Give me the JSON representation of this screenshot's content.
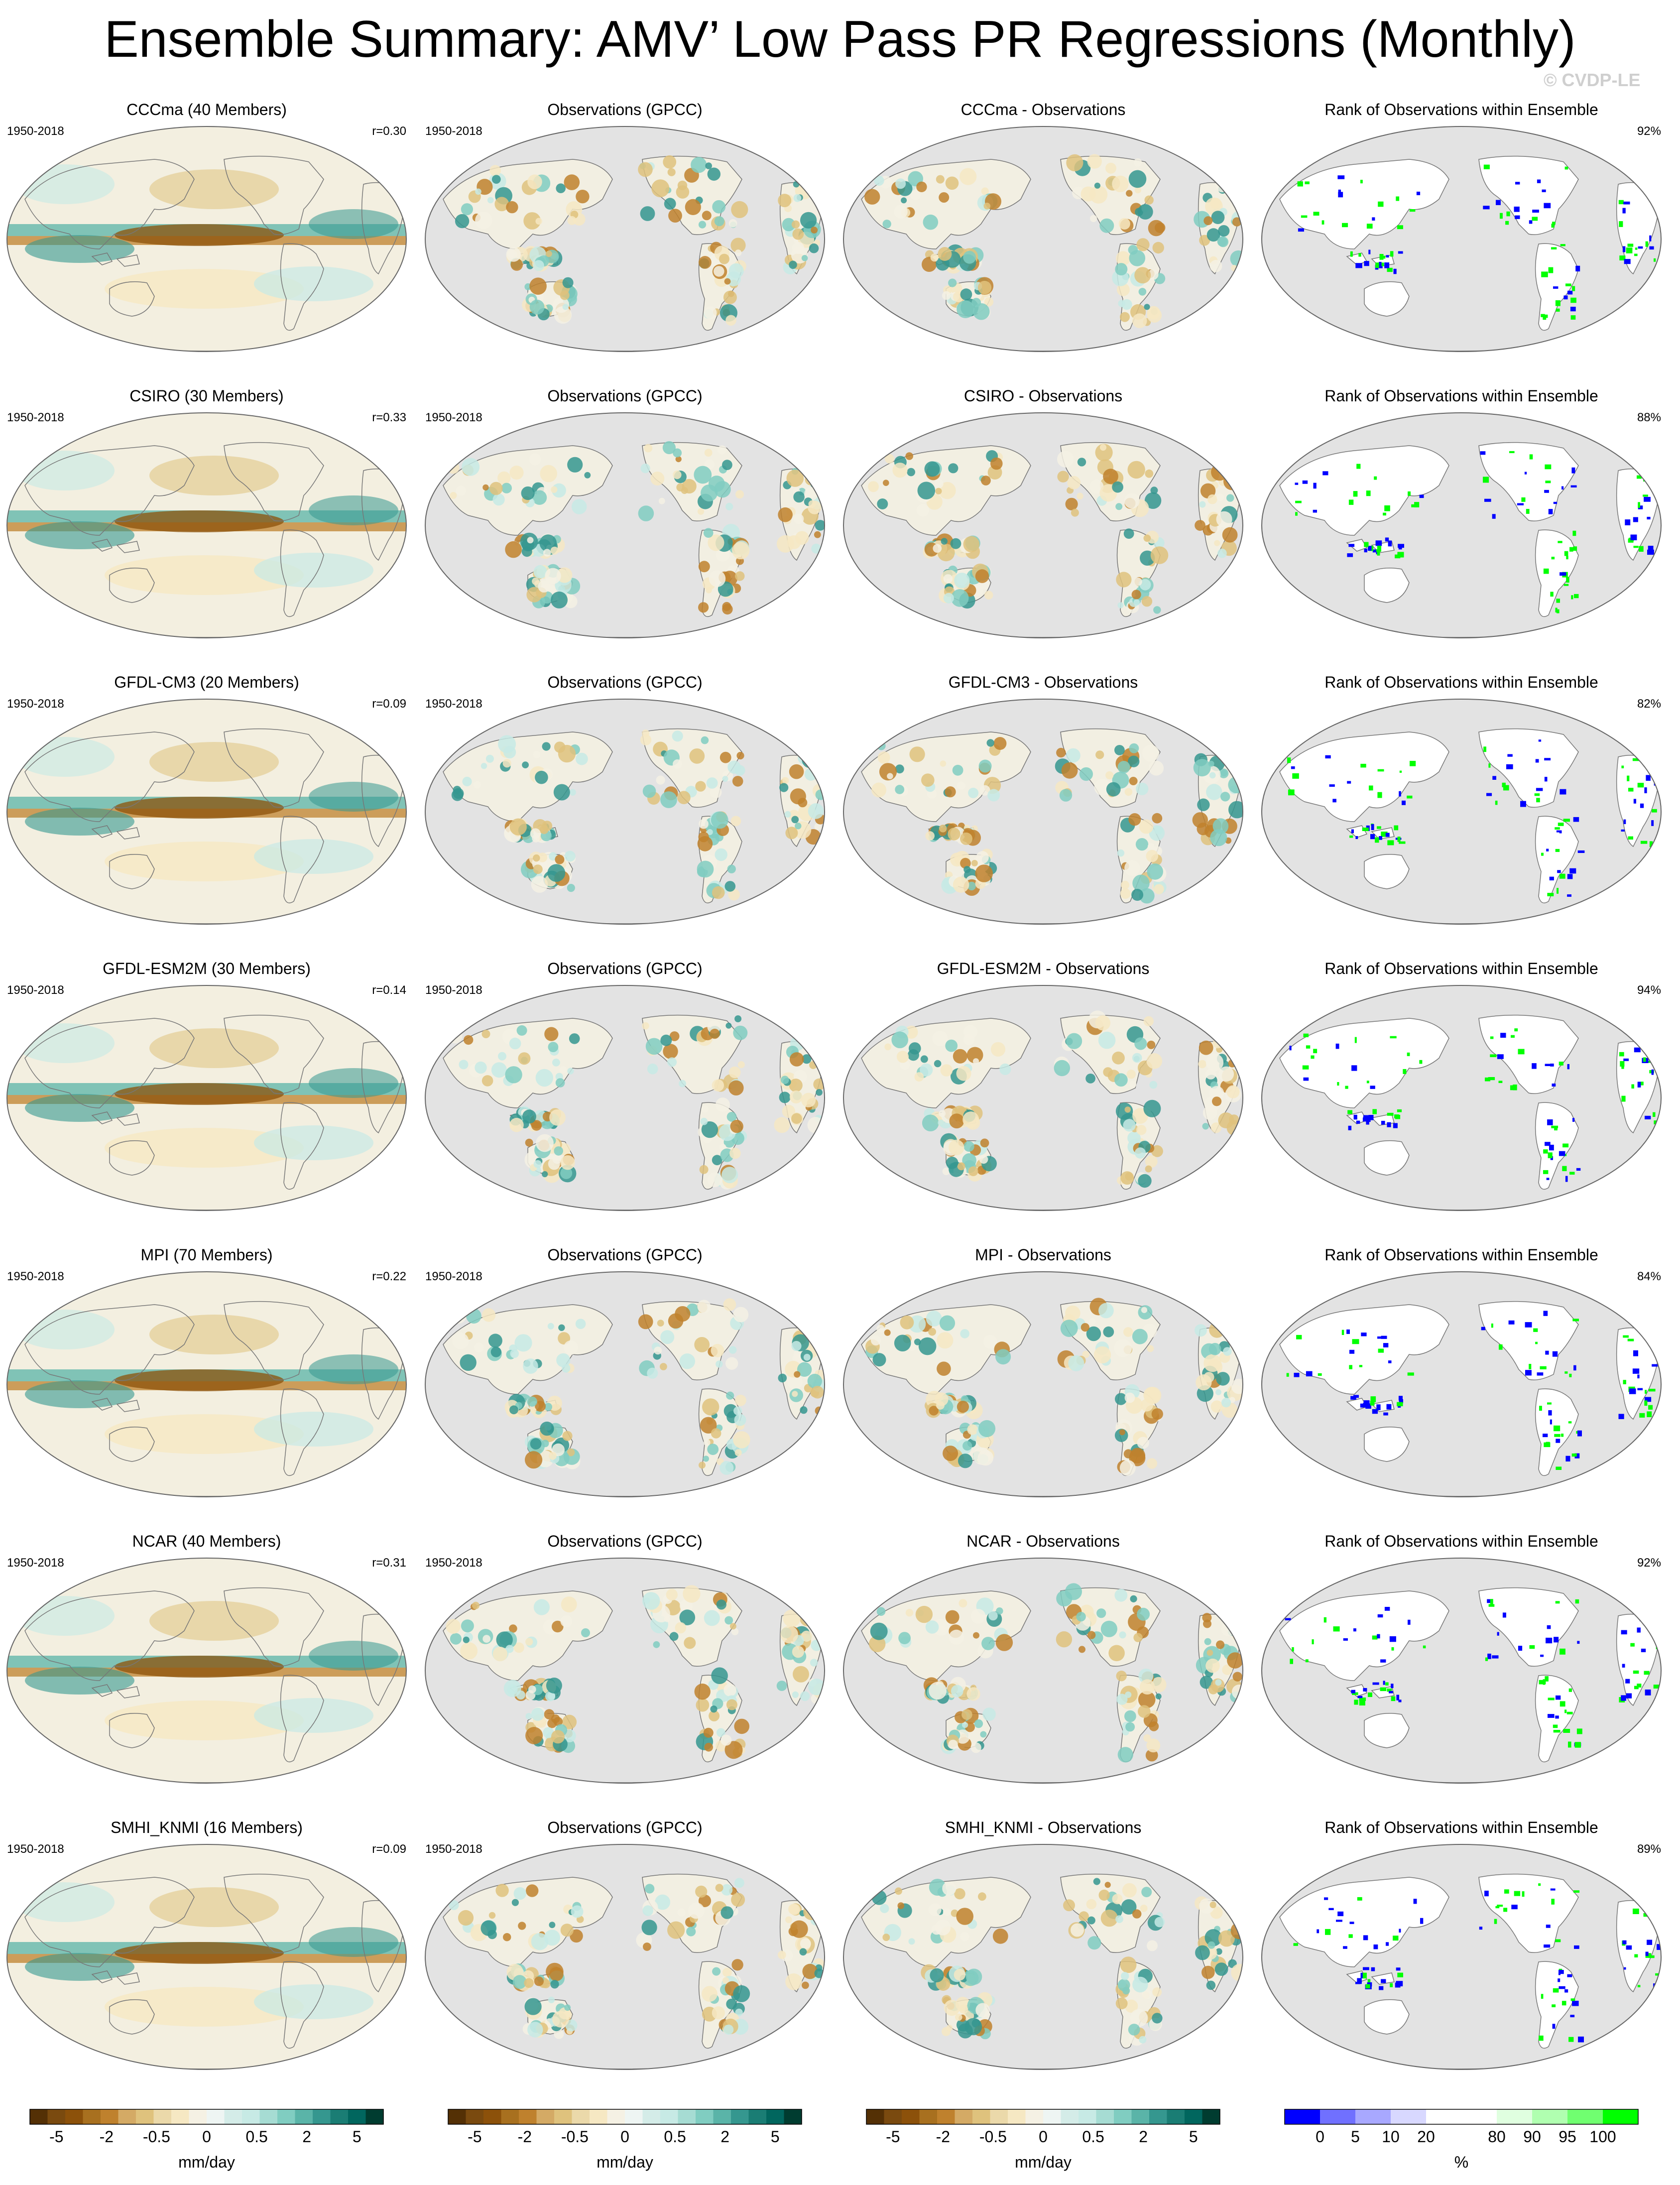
{
  "title": "Ensemble Summary: AMV’ Low Pass PR Regressions (Monthly)",
  "watermark": "© CVDP-LE",
  "period": "1950-2018",
  "obs_title": "Observations (GPCC)",
  "rank_title": "Rank of Observations within Ensemble",
  "rows": [
    {
      "model_title": "CCCma (40 Members)",
      "r": "r=0.30",
      "diff_title": "CCCma - Observations",
      "rank_pct": "92%"
    },
    {
      "model_title": "CSIRO (30 Members)",
      "r": "r=0.33",
      "diff_title": "CSIRO - Observations",
      "rank_pct": "88%"
    },
    {
      "model_title": "GFDL-CM3 (20 Members)",
      "r": "r=0.09",
      "diff_title": "GFDL-CM3 - Observations",
      "rank_pct": "82%"
    },
    {
      "model_title": "GFDL-ESM2M (30 Members)",
      "r": "r=0.14",
      "diff_title": "GFDL-ESM2M - Observations",
      "rank_pct": "94%"
    },
    {
      "model_title": "MPI (70 Members)",
      "r": "r=0.22",
      "diff_title": "MPI - Observations",
      "rank_pct": "84%"
    },
    {
      "model_title": "NCAR (40 Members)",
      "r": "r=0.31",
      "diff_title": "NCAR - Observations",
      "rank_pct": "92%"
    },
    {
      "model_title": "SMHI_KNMI (16 Members)",
      "r": "r=0.09",
      "diff_title": "SMHI_KNMI - Observations",
      "rank_pct": "89%"
    }
  ],
  "colorbars": {
    "pr": {
      "unit": "mm/day",
      "ticks": [
        "-5",
        "-2",
        "-0.5",
        "0",
        "0.5",
        "2",
        "5"
      ],
      "colors": [
        "#543005",
        "#7a4a0f",
        "#8c510a",
        "#a8701f",
        "#bf812d",
        "#d4aa65",
        "#dfc27d",
        "#ebd9aa",
        "#f6e8c3",
        "#f5f1e4",
        "#eef5f3",
        "#d4ece8",
        "#c7eae5",
        "#a6dcd3",
        "#80cdc1",
        "#5ab4a8",
        "#35978f",
        "#1a7d74",
        "#01665e",
        "#003c30"
      ]
    },
    "rank": {
      "unit": "%",
      "ticks": [
        "0",
        "5",
        "10",
        "20",
        "80",
        "90",
        "95",
        "100"
      ],
      "colors": [
        "#0000ff",
        "#7070ff",
        "#a8a8ff",
        "#d8d8ff",
        "#ffffff",
        "#ffffff",
        "#e0ffe0",
        "#b0ffb0",
        "#70ff70",
        "#00ff00"
      ]
    }
  }
}
